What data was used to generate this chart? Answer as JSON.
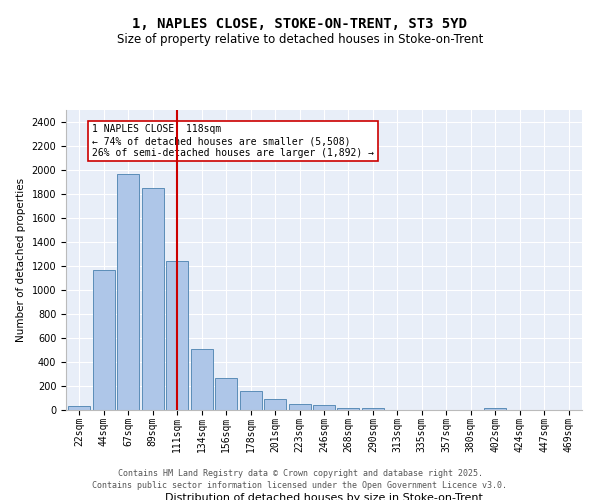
{
  "title1": "1, NAPLES CLOSE, STOKE-ON-TRENT, ST3 5YD",
  "title2": "Size of property relative to detached houses in Stoke-on-Trent",
  "xlabel": "Distribution of detached houses by size in Stoke-on-Trent",
  "ylabel": "Number of detached properties",
  "categories": [
    "22sqm",
    "44sqm",
    "67sqm",
    "89sqm",
    "111sqm",
    "134sqm",
    "156sqm",
    "178sqm",
    "201sqm",
    "223sqm",
    "246sqm",
    "268sqm",
    "290sqm",
    "313sqm",
    "335sqm",
    "357sqm",
    "380sqm",
    "402sqm",
    "424sqm",
    "447sqm",
    "469sqm"
  ],
  "values": [
    30,
    1170,
    1970,
    1850,
    1240,
    510,
    270,
    155,
    90,
    48,
    40,
    20,
    15,
    0,
    0,
    0,
    0,
    15,
    0,
    0,
    0
  ],
  "bar_color": "#aec6e8",
  "bar_edge_color": "#5b8db8",
  "vline_pos": 4.0,
  "annotation_line1": "1 NAPLES CLOSE: 118sqm",
  "annotation_line2": "← 74% of detached houses are smaller (5,508)",
  "annotation_line3": "26% of semi-detached houses are larger (1,892) →",
  "annotation_box_color": "#ffffff",
  "annotation_box_edge": "#cc0000",
  "vline_color": "#cc0000",
  "ylim": [
    0,
    2500
  ],
  "yticks": [
    0,
    200,
    400,
    600,
    800,
    1000,
    1200,
    1400,
    1600,
    1800,
    2000,
    2200,
    2400
  ],
  "bg_color": "#e8eef8",
  "footer1": "Contains HM Land Registry data © Crown copyright and database right 2025.",
  "footer2": "Contains public sector information licensed under the Open Government Licence v3.0.",
  "title1_fontsize": 10,
  "title2_fontsize": 8.5,
  "xlabel_fontsize": 8,
  "ylabel_fontsize": 7.5,
  "tick_fontsize": 7,
  "footer_fontsize": 6,
  "annot_fontsize": 7
}
